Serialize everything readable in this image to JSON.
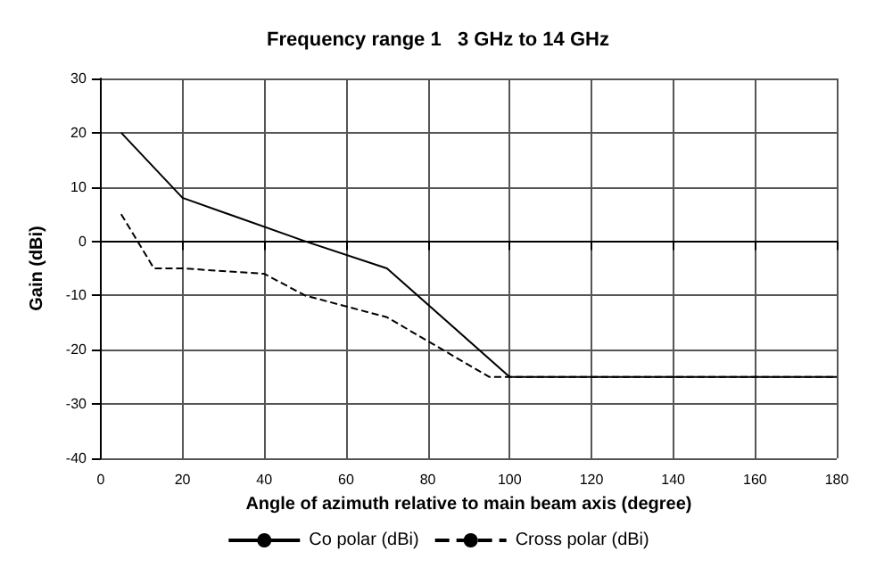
{
  "chart_data": {
    "type": "line",
    "title": "Frequency range 1   3 GHz to 14 GHz",
    "xlabel": "Angle of azimuth relative to main beam axis (degree)",
    "ylabel": "Gain (dBi)",
    "xlim": [
      0,
      180
    ],
    "xticks": [
      0,
      20,
      40,
      60,
      80,
      100,
      120,
      140,
      160,
      180
    ],
    "ylim": [
      -40,
      30
    ],
    "yticks": [
      -40,
      -30,
      -20,
      -10,
      0,
      10,
      20,
      30
    ],
    "grid": true,
    "legend": "bottom",
    "marker": "none",
    "series": [
      {
        "name": "Co polar (dBi)",
        "color": "#000000",
        "line_style": "solid",
        "x": [
          5,
          20,
          50,
          70,
          100,
          180
        ],
        "values": [
          20,
          8,
          0,
          -5,
          -25,
          -25
        ]
      },
      {
        "name": "Cross polar (dBi)",
        "color": "#000000",
        "line_style": "dashed",
        "x": [
          5,
          13,
          20,
          40,
          50,
          70,
          95,
          180
        ],
        "values": [
          5,
          -5,
          -5,
          -6,
          -10,
          -14,
          -25,
          -25
        ]
      }
    ]
  }
}
